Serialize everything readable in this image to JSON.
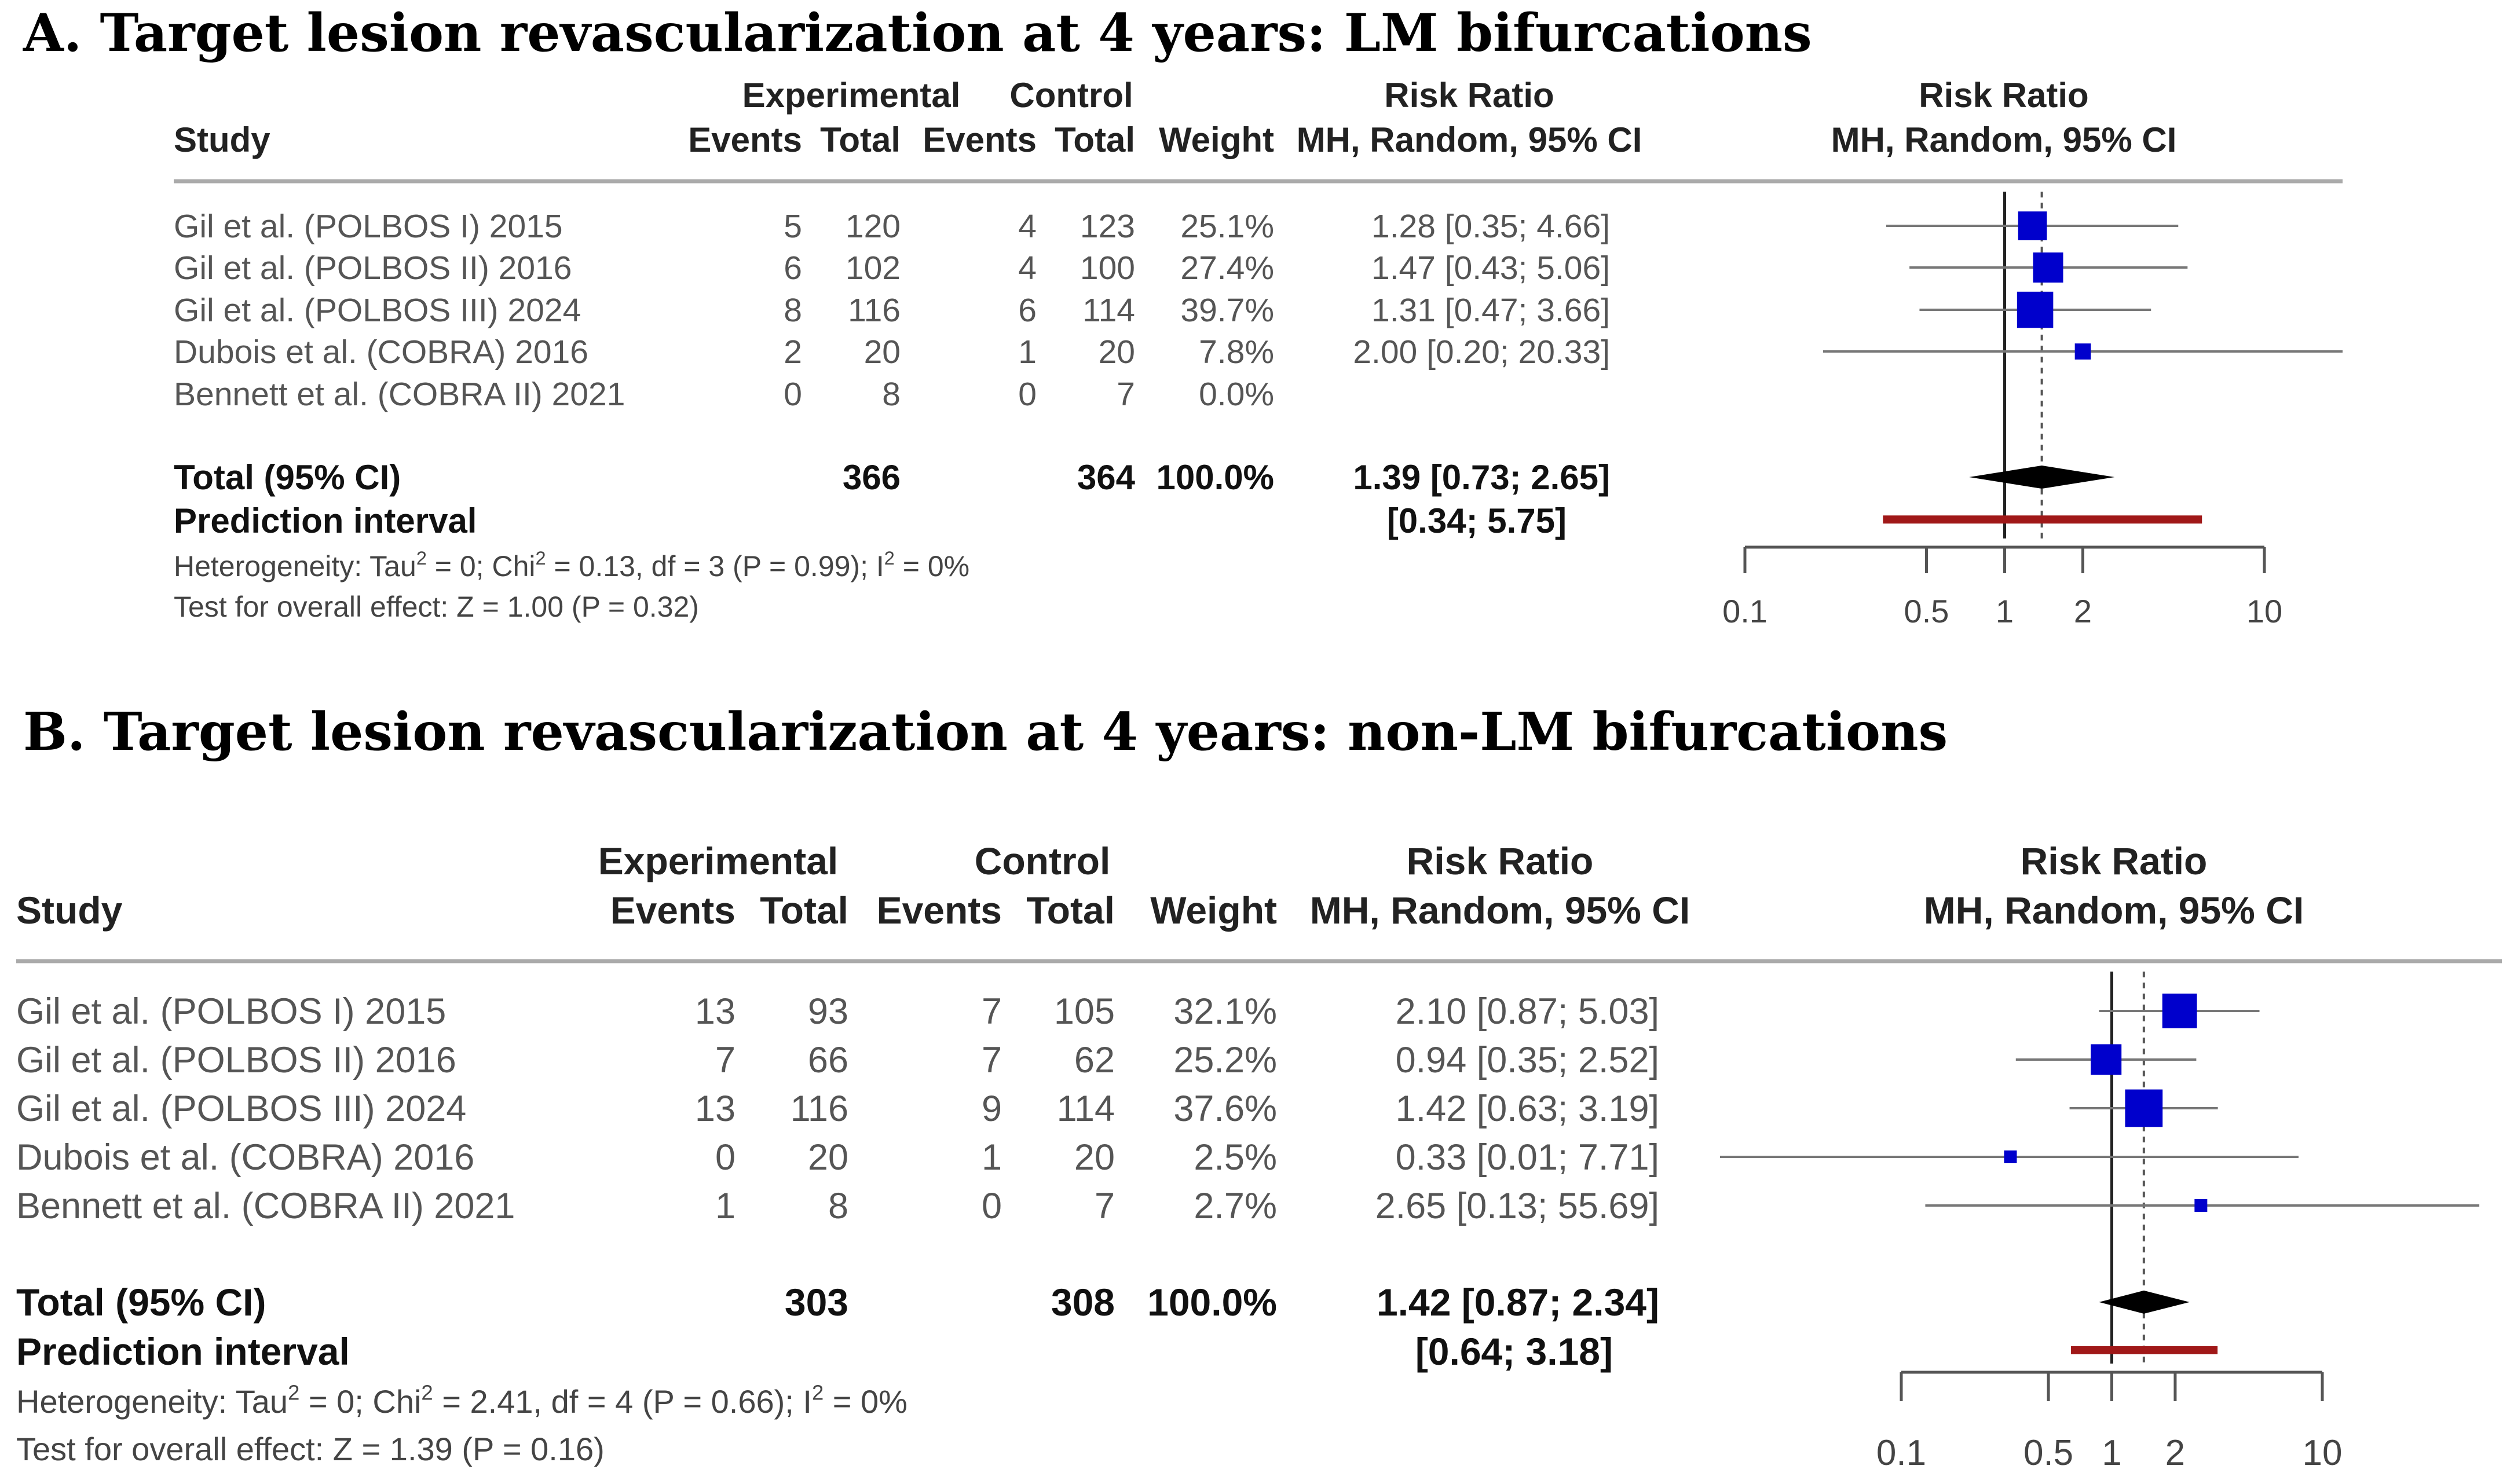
{
  "chart_data": [
    {
      "type": "forest",
      "title": "A. Target lesion revascularization at 4 years: LM bifurcations",
      "headers": {
        "study": "Study",
        "experimental": "Experimental",
        "control": "Control",
        "events": "Events",
        "total": "Total",
        "weight": "Weight",
        "risk_ratio": "Risk Ratio",
        "method": "MH, Random, 95% CI",
        "plot_title": "Risk Ratio",
        "plot_method": "MH, Random, 95% CI"
      },
      "studies": [
        {
          "name": "Gil et al. (POLBOS I) 2015",
          "exp_events": "5",
          "exp_total": "120",
          "ctrl_events": "4",
          "ctrl_total": "123",
          "weight": "25.1%",
          "ci_text": "1.28 [0.35;  4.66]",
          "rr": 1.28,
          "lo": 0.35,
          "hi": 4.66,
          "w": 25.1
        },
        {
          "name": "Gil et al. (POLBOS II) 2016",
          "exp_events": "6",
          "exp_total": "102",
          "ctrl_events": "4",
          "ctrl_total": "100",
          "weight": "27.4%",
          "ci_text": "1.47 [0.43;  5.06]",
          "rr": 1.47,
          "lo": 0.43,
          "hi": 5.06,
          "w": 27.4
        },
        {
          "name": "Gil et al. (POLBOS III) 2024",
          "exp_events": "8",
          "exp_total": "116",
          "ctrl_events": "6",
          "ctrl_total": "114",
          "weight": "39.7%",
          "ci_text": "1.31 [0.47;  3.66]",
          "rr": 1.31,
          "lo": 0.47,
          "hi": 3.66,
          "w": 39.7
        },
        {
          "name": "Dubois et al. (COBRA) 2016",
          "exp_events": "2",
          "exp_total": "20",
          "ctrl_events": "1",
          "ctrl_total": "20",
          "weight": "7.8%",
          "ci_text": "2.00 [0.20; 20.33]",
          "rr": 2.0,
          "lo": 0.2,
          "hi": 20.33,
          "w": 7.8
        },
        {
          "name": "Bennett et al. (COBRA II) 2021",
          "exp_events": "0",
          "exp_total": "8",
          "ctrl_events": "0",
          "ctrl_total": "7",
          "weight": "0.0%",
          "ci_text": "",
          "rr": null,
          "lo": null,
          "hi": null,
          "w": 0
        }
      ],
      "total": {
        "label": "Total (95% CI)",
        "exp_total": "366",
        "ctrl_total": "364",
        "weight": "100.0%",
        "ci_text": "1.39 [0.73;  2.65]",
        "rr": 1.39,
        "lo": 0.73,
        "hi": 2.65
      },
      "prediction": {
        "label": "Prediction interval",
        "ci_text": "[0.34;  5.75]",
        "lo": 0.34,
        "hi": 5.75
      },
      "heterogeneity": {
        "prefix": "Heterogeneity: Tau",
        "chi_part": " = 0; Chi",
        "df_part": " = 0.13, df = 3 (P = 0.99); I",
        "end_part": " = 0%",
        "sup": "2"
      },
      "overall_effect": "Test for overall effect: Z = 1.00 (P = 0.32)",
      "x_axis": {
        "scale": "log",
        "ticks": [
          0.1,
          0.5,
          1,
          2,
          10
        ],
        "tick_labels": [
          "0.1",
          "0.5",
          "1",
          "2",
          "10"
        ],
        "range": [
          0.1,
          10
        ]
      }
    },
    {
      "type": "forest",
      "title": "B. Target lesion revascularization at 4 years: non-LM bifurcations",
      "headers": {
        "study": "Study",
        "experimental": "Experimental",
        "control": "Control",
        "events": "Events",
        "total": "Total",
        "weight": "Weight",
        "risk_ratio": "Risk Ratio",
        "method": "MH, Random, 95% CI",
        "plot_title": "Risk Ratio",
        "plot_method": "MH, Random, 95% CI"
      },
      "studies": [
        {
          "name": "Gil et al. (POLBOS I) 2015",
          "exp_events": "13",
          "exp_total": "93",
          "ctrl_events": "7",
          "ctrl_total": "105",
          "weight": "32.1%",
          "ci_text": "2.10 [0.87;  5.03]",
          "rr": 2.1,
          "lo": 0.87,
          "hi": 5.03,
          "w": 32.1
        },
        {
          "name": "Gil et al. (POLBOS II) 2016",
          "exp_events": "7",
          "exp_total": "66",
          "ctrl_events": "7",
          "ctrl_total": "62",
          "weight": "25.2%",
          "ci_text": "0.94 [0.35;  2.52]",
          "rr": 0.94,
          "lo": 0.35,
          "hi": 2.52,
          "w": 25.2
        },
        {
          "name": "Gil et al. (POLBOS III) 2024",
          "exp_events": "13",
          "exp_total": "116",
          "ctrl_events": "9",
          "ctrl_total": "114",
          "weight": "37.6%",
          "ci_text": "1.42 [0.63;  3.19]",
          "rr": 1.42,
          "lo": 0.63,
          "hi": 3.19,
          "w": 37.6
        },
        {
          "name": "Dubois et al. (COBRA) 2016",
          "exp_events": "0",
          "exp_total": "20",
          "ctrl_events": "1",
          "ctrl_total": "20",
          "weight": "2.5%",
          "ci_text": "0.33 [0.01;  7.71]",
          "rr": 0.33,
          "lo": 0.01,
          "hi": 7.71,
          "w": 2.5
        },
        {
          "name": "Bennett et al. (COBRA II) 2021",
          "exp_events": "1",
          "exp_total": "8",
          "ctrl_events": "0",
          "ctrl_total": "7",
          "weight": "2.7%",
          "ci_text": "2.65 [0.13; 55.69]",
          "rr": 2.65,
          "lo": 0.13,
          "hi": 55.69,
          "w": 2.7
        }
      ],
      "total": {
        "label": "Total (95% CI)",
        "exp_total": "303",
        "ctrl_total": "308",
        "weight": "100.0%",
        "ci_text": "1.42 [0.87;  2.34]",
        "rr": 1.42,
        "lo": 0.87,
        "hi": 2.34
      },
      "prediction": {
        "label": "Prediction interval",
        "ci_text": "[0.64;  3.18]",
        "lo": 0.64,
        "hi": 3.18
      },
      "heterogeneity": {
        "prefix": "Heterogeneity: Tau",
        "chi_part": " = 0; Chi",
        "df_part": " = 2.41, df = 4 (P = 0.66); I",
        "end_part": " = 0%",
        "sup": "2"
      },
      "overall_effect": "Test for overall effect: Z = 1.39 (P = 0.16)",
      "x_axis": {
        "scale": "log",
        "ticks": [
          0.1,
          0.5,
          1,
          2,
          10
        ],
        "tick_labels": [
          "0.1",
          "0.5",
          "1",
          "2",
          "10"
        ],
        "range": [
          0.1,
          10
        ]
      }
    }
  ],
  "colors": {
    "square": "#0000cc",
    "line": "#777777",
    "diamond": "#000000",
    "prediction": "#a01818",
    "axis": "#555555",
    "rule": "#aaaaaa"
  }
}
